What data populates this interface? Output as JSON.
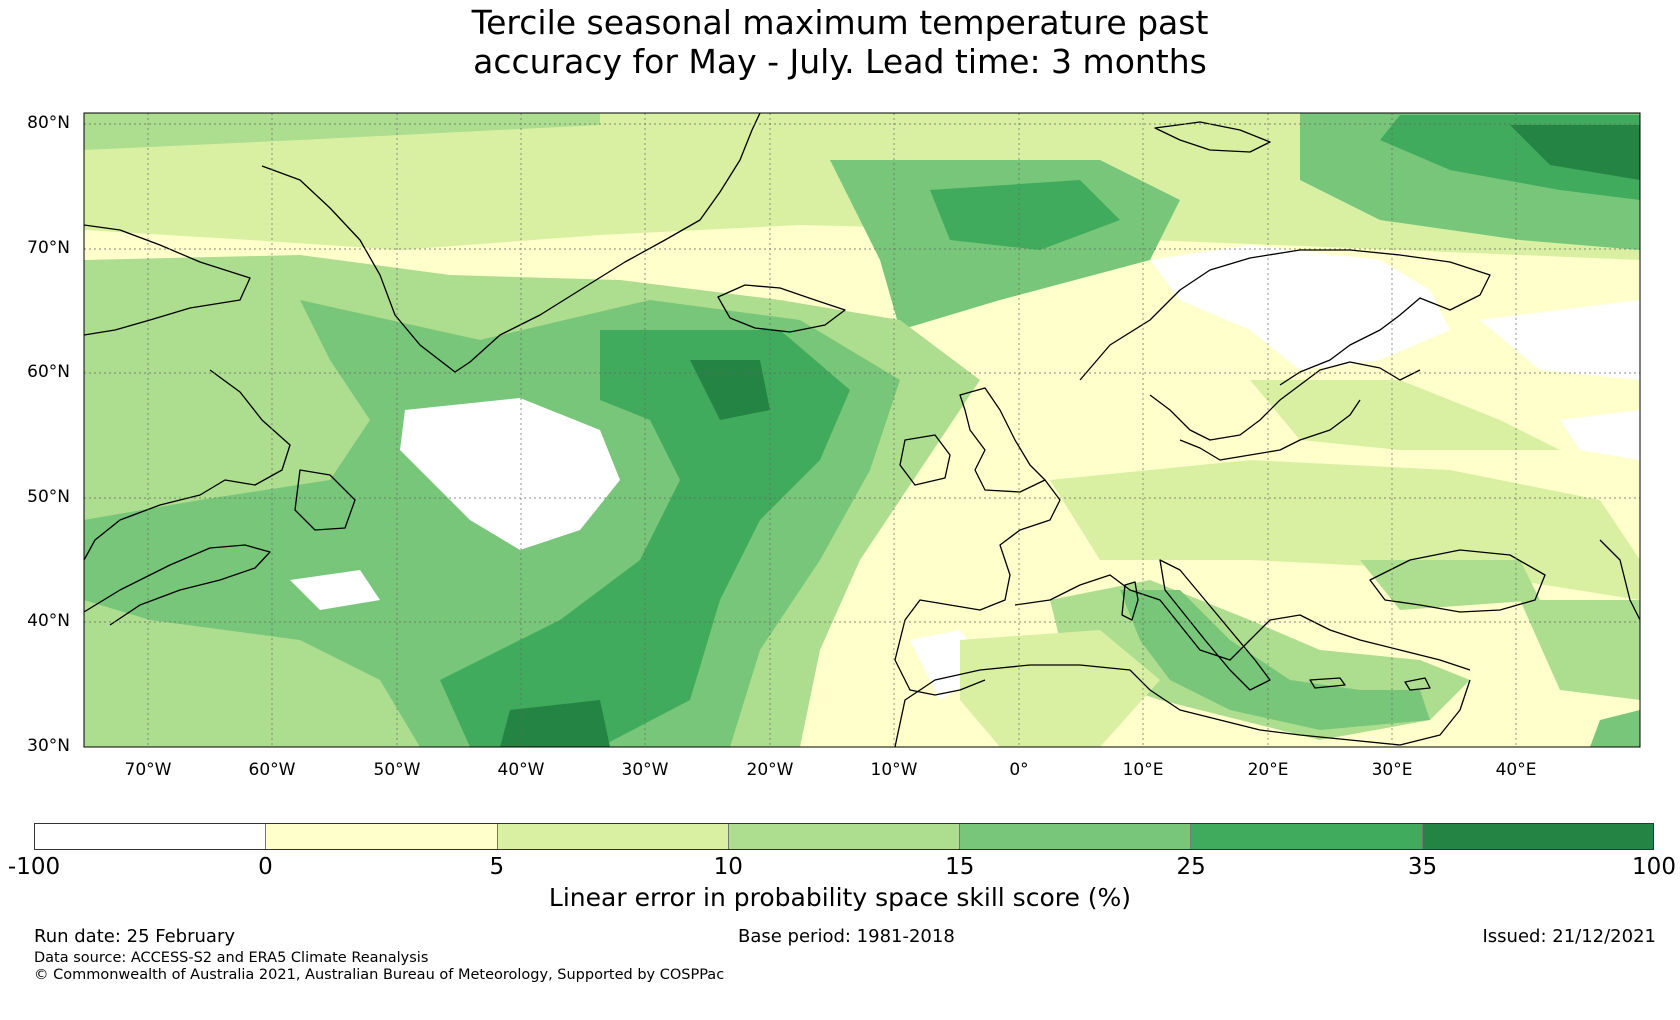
{
  "title": {
    "line1": "Tercile seasonal maximum temperature past",
    "line2": "accuracy for May - July. Lead time: 3 months"
  },
  "map": {
    "region": "North Atlantic, Europe and Mediterranean",
    "lon_range": [
      -75,
      50
    ],
    "lat_range": [
      30,
      81
    ],
    "lat_labels": [
      "80°N",
      "70°N",
      "60°N",
      "50°N",
      "40°N",
      "30°N"
    ],
    "lon_labels": [
      "70°W",
      "60°W",
      "50°W",
      "40°W",
      "30°W",
      "20°W",
      "10°W",
      "0°",
      "10°E",
      "20°E",
      "30°E",
      "40°E"
    ],
    "gridlines": true,
    "coastline_color": "#000000"
  },
  "colorbar": {
    "ticks": [
      "-100",
      "0",
      "5",
      "10",
      "15",
      "25",
      "35",
      "100"
    ],
    "colors": [
      "#ffffff",
      "#ffffcc",
      "#d9f0a3",
      "#addd8e",
      "#78c679",
      "#41ab5d",
      "#238443"
    ],
    "label": "Linear error in probability space skill score (%)"
  },
  "footer": {
    "run_date": "Run date: 25 February",
    "base_period": "Base period: 1981-2018",
    "issued": "Issued: 21/12/2021",
    "data_source": "Data source: ACCESS-S2 and ERA5 Climate Reanalysis",
    "copyright": "© Commonwealth of Australia 2021, Australian Bureau of Meteorology, Supported by COSPPac"
  }
}
